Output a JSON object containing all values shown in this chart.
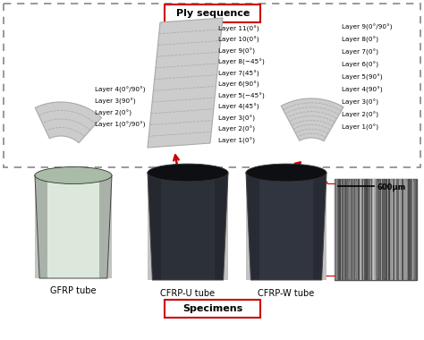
{
  "title_ply": "Ply sequence",
  "title_specimens": "Specimens",
  "gfrp_label": "GFRP tube",
  "cfrp_u_label": "CFRP-U tube",
  "cfrp_w_label": "CFRP-W tube",
  "scale_label": "600μm",
  "gfrp_layers": [
    "Layer 4(0°/90°)",
    "Layer 3(90°)",
    "Layer 2(0°)",
    "Layer 1(0°/90°)"
  ],
  "cfrp_u_layers": [
    "Layer 11(0°)",
    "Layer 10(0°)",
    "Layer 9(0°)",
    "Layer 8(−45°)",
    "Layer 7(45°)",
    "Layer 6(90°)",
    "Layer 5(−45°)",
    "Layer 4(45°)",
    "Layer 3(0°)",
    "Layer 2(0°)",
    "Layer 1(0°)"
  ],
  "cfrp_w_layers": [
    "Layer 9(0°/90°)",
    "Layer 8(0°)",
    "Layer 7(0°)",
    "Layer 6(0°)",
    "Layer 5(90°)",
    "Layer 4(90°)",
    "Layer 3(0°)",
    "Layer 2(0°)",
    "Layer 1(0°)"
  ],
  "bg_color": "#ffffff",
  "dashed_box_color": "#888888",
  "red_color": "#cc0000",
  "layer_fill": "#cccccc",
  "layer_line": "#aaaaaa"
}
